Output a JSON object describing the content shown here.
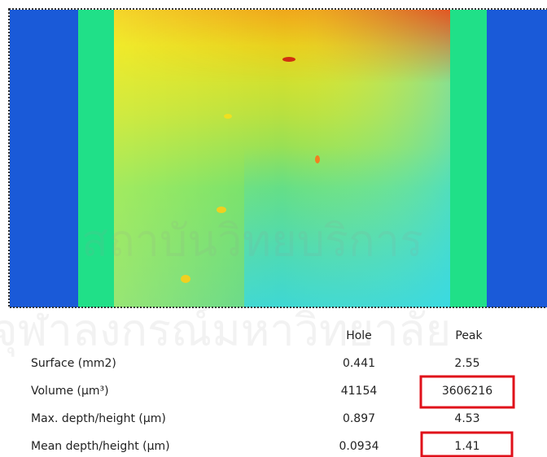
{
  "watermark": [
    "สถาบันวิทยบริการ",
    "จุฬาลงกรณ์มหาวิทยาลัย"
  ],
  "table": {
    "columns": [
      "Hole",
      "Peak"
    ],
    "rows": [
      {
        "label": "Surface (mm2)",
        "hole": 0.441,
        "peak": 2.55
      },
      {
        "label": "Volume (µm³)",
        "hole": 41154,
        "peak": 3606216
      },
      {
        "label": "Max. depth/height (µm)",
        "hole": 0.897,
        "peak": 4.53
      },
      {
        "label": "Mean depth/height (µm)",
        "hole": 0.0934,
        "peak": 1.41
      }
    ]
  }
}
